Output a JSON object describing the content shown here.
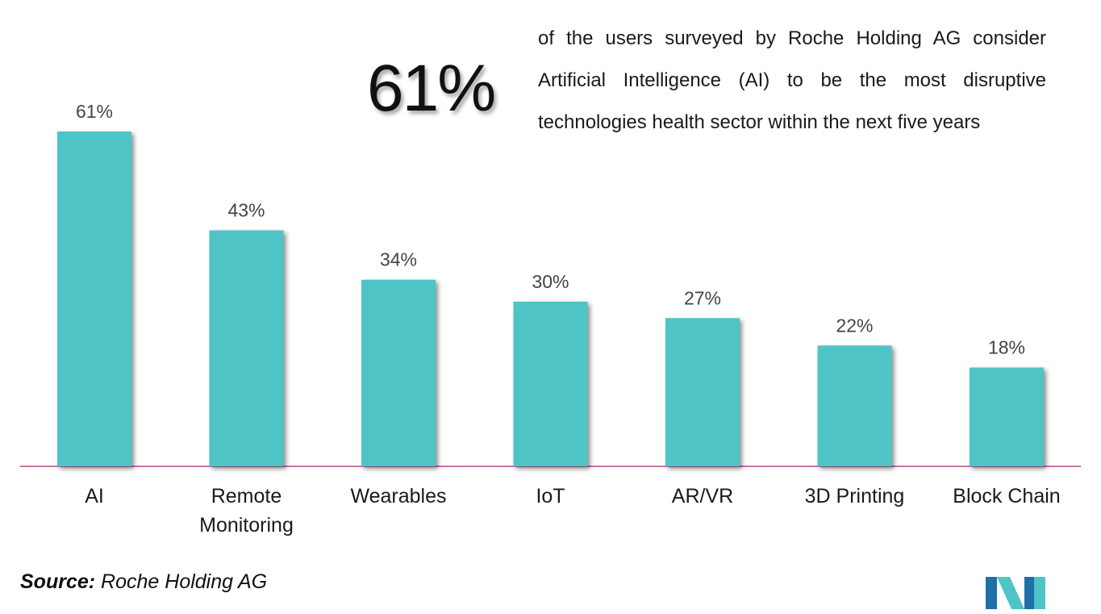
{
  "headline": {
    "value": "61%",
    "lines": [
      "of the users surveyed by Roche Holding AG consider",
      "Artificial Intelligence (AI) to be the most disruptive",
      "technologies health sector within the next five years"
    ]
  },
  "source": {
    "label": "Source:",
    "text": "Roche Holding AG"
  },
  "colors": {
    "bar": "#4fc4c6",
    "baseline": "#b04a8a",
    "logo_dark": "#1f6fa8",
    "logo_light": "#4fc4c6"
  },
  "logo_icon": "mordor-logo-icon",
  "chart_data": {
    "type": "bar",
    "categories": [
      "AI",
      "Remote Monitoring",
      "Wearables",
      "IoT",
      "AR/VR",
      "3D Printing",
      "Block Chain"
    ],
    "category_lines": [
      [
        "AI"
      ],
      [
        "Remote",
        "Monitoring"
      ],
      [
        "Wearables"
      ],
      [
        "IoT"
      ],
      [
        "AR/VR"
      ],
      [
        "3D Printing"
      ],
      [
        "Block Chain"
      ]
    ],
    "values": [
      61,
      43,
      34,
      30,
      27,
      22,
      18
    ],
    "value_labels": [
      "61%",
      "43%",
      "34%",
      "30%",
      "27%",
      "22%",
      "18%"
    ],
    "ylim": [
      0,
      61
    ],
    "grid": false,
    "legend": "none"
  }
}
